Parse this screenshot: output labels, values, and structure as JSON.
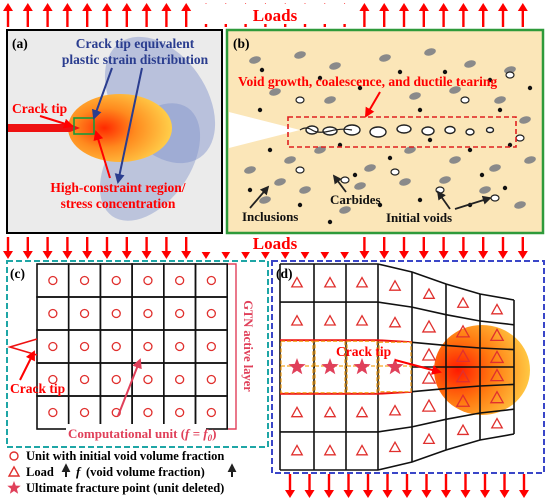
{
  "top_label": "Loads",
  "middle_label": "Loads",
  "panel_a": {
    "letter": "(a)",
    "title_line1": "Crack tip equivalent",
    "title_line2": "plastic strain distribution",
    "crack_tip": "Crack tip",
    "region_line1": "High-constraint region/",
    "region_line2": "stress concentration"
  },
  "panel_b": {
    "letter": "(b)",
    "title": "Void growth, coalescence, and ductile tearing",
    "carbides": "Carbides",
    "inclusions": "Inclusions",
    "initial_voids": "Initial voids"
  },
  "panel_c": {
    "letter": "(c)",
    "crack_tip": "Crack tip",
    "gtn_layer": "GTN active layer",
    "unit_pre": "Computational unit (",
    "unit_math": "f = f",
    "unit_sub": "0",
    "unit_post": ")"
  },
  "panel_d": {
    "letter": "(d)",
    "crack_tip": "Crack tip"
  },
  "legend": {
    "item1": "Unit with initial void volume fraction",
    "item2_pre": "Load",
    "item2_mid": "(void volume fraction)",
    "item2_f": "f",
    "item3": "Ultimate fracture point (unit deleted)"
  },
  "colors": {
    "load_arrow": "#ff0000",
    "crack_red": "#ee1111",
    "panel_a_border": "#000000",
    "panel_b_border": "#2e9a3a",
    "panel_c_border": "#1fa6a6",
    "panel_d_border": "#3a46c8",
    "callout_blue": "#2a3d8f",
    "callout_red": "#ff0000",
    "matrix_bg": "#fbe6b8",
    "grid_symbol": "#e0302e"
  }
}
